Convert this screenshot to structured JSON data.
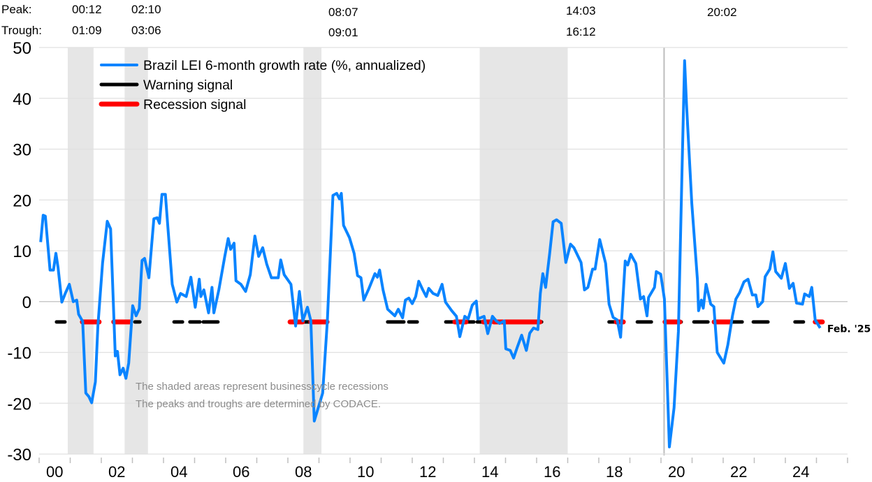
{
  "chart_data": {
    "type": "line",
    "title": "",
    "xlabel": "",
    "ylabel": "",
    "ylim": [
      -30,
      50
    ],
    "xlim": [
      2000,
      2026
    ],
    "grid": true,
    "y_ticks": [
      50,
      40,
      30,
      20,
      10,
      0,
      -10,
      -20,
      -30
    ],
    "x_tick_labels": [
      {
        "year": 2000,
        "label": "00"
      },
      {
        "year": 2002,
        "label": "02"
      },
      {
        "year": 2004,
        "label": "04"
      },
      {
        "year": 2006,
        "label": "06"
      },
      {
        "year": 2008,
        "label": "08"
      },
      {
        "year": 2010,
        "label": "10"
      },
      {
        "year": 2012,
        "label": "12"
      },
      {
        "year": 2014,
        "label": "14"
      },
      {
        "year": 2016,
        "label": "16"
      },
      {
        "year": 2018,
        "label": "18"
      },
      {
        "year": 2020,
        "label": "20"
      },
      {
        "year": 2022,
        "label": "22"
      },
      {
        "year": 2024,
        "label": "24"
      }
    ],
    "legend": {
      "placement": "top-left",
      "entries": [
        {
          "label": "Brazil LEI 6-month growth rate (%, annualized)",
          "color": "#0a84ff"
        },
        {
          "label": "Warning signal",
          "color": "#000000"
        },
        {
          "label": "Recession signal",
          "color": "#ff0000"
        }
      ]
    },
    "series": [
      {
        "name": "Brazil LEI 6-month growth rate (%, annualized)",
        "color": "#0a84ff",
        "points": [
          [
            2000.05,
            11.7
          ],
          [
            2000.13,
            17
          ],
          [
            2000.2,
            16.8
          ],
          [
            2000.35,
            6.2
          ],
          [
            2000.46,
            6.2
          ],
          [
            2000.54,
            9.5
          ],
          [
            2000.61,
            6.7
          ],
          [
            2000.73,
            -0.1
          ],
          [
            2000.84,
            1.6
          ],
          [
            2000.97,
            3.4
          ],
          [
            2001.1,
            0
          ],
          [
            2001.21,
            0.3
          ],
          [
            2001.27,
            -2.5
          ],
          [
            2001.4,
            -3.9
          ],
          [
            2001.5,
            -18
          ],
          [
            2001.6,
            -18.7
          ],
          [
            2001.69,
            -19.9
          ],
          [
            2001.81,
            -15.8
          ],
          [
            2001.89,
            -4.8
          ],
          [
            2002.04,
            7.6
          ],
          [
            2002.19,
            15.8
          ],
          [
            2002.3,
            14.3
          ],
          [
            2002.45,
            -10.7
          ],
          [
            2002.52,
            -9.8
          ],
          [
            2002.6,
            -14.4
          ],
          [
            2002.7,
            -13.1
          ],
          [
            2002.79,
            -15.1
          ],
          [
            2002.88,
            -12.1
          ],
          [
            2003.01,
            -0.8
          ],
          [
            2003.12,
            -2.8
          ],
          [
            2003.22,
            -1.4
          ],
          [
            2003.31,
            8.1
          ],
          [
            2003.39,
            8.5
          ],
          [
            2003.53,
            4.7
          ],
          [
            2003.69,
            16.3
          ],
          [
            2003.8,
            16.5
          ],
          [
            2003.87,
            15.4
          ],
          [
            2003.95,
            21.1
          ],
          [
            2004.06,
            21.1
          ],
          [
            2004.28,
            3.4
          ],
          [
            2004.43,
            -0.1
          ],
          [
            2004.55,
            1.6
          ],
          [
            2004.73,
            1
          ],
          [
            2004.88,
            4.8
          ],
          [
            2005.02,
            -1.1
          ],
          [
            2005.15,
            4.4
          ],
          [
            2005.2,
            1
          ],
          [
            2005.3,
            2.3
          ],
          [
            2005.45,
            -2.2
          ],
          [
            2005.56,
            2.8
          ],
          [
            2005.62,
            -2.2
          ],
          [
            2005.78,
            2.3
          ],
          [
            2005.97,
            8.9
          ],
          [
            2006.08,
            12.4
          ],
          [
            2006.16,
            10.3
          ],
          [
            2006.27,
            11.5
          ],
          [
            2006.33,
            4.1
          ],
          [
            2006.49,
            3.4
          ],
          [
            2006.64,
            2
          ],
          [
            2006.79,
            5.3
          ],
          [
            2006.94,
            12.9
          ],
          [
            2007.06,
            8.9
          ],
          [
            2007.19,
            10.6
          ],
          [
            2007.32,
            7.4
          ],
          [
            2007.47,
            4.7
          ],
          [
            2007.69,
            4.7
          ],
          [
            2007.77,
            8.2
          ],
          [
            2007.88,
            5.3
          ],
          [
            2008.1,
            3.4
          ],
          [
            2008.25,
            -4.8
          ],
          [
            2008.37,
            2
          ],
          [
            2008.48,
            -3.8
          ],
          [
            2008.63,
            -1.1
          ],
          [
            2008.74,
            -3.8
          ],
          [
            2008.85,
            -23.5
          ],
          [
            2009.12,
            -18
          ],
          [
            2009.27,
            -3.8
          ],
          [
            2009.45,
            20.9
          ],
          [
            2009.57,
            21.3
          ],
          [
            2009.66,
            20.2
          ],
          [
            2009.72,
            21.3
          ],
          [
            2009.79,
            15
          ],
          [
            2009.98,
            12.6
          ],
          [
            2010.13,
            9.5
          ],
          [
            2010.24,
            5.1
          ],
          [
            2010.35,
            4.7
          ],
          [
            2010.44,
            0.3
          ],
          [
            2010.61,
            2.6
          ],
          [
            2010.8,
            5.5
          ],
          [
            2010.88,
            4.8
          ],
          [
            2010.95,
            6.2
          ],
          [
            2011.06,
            2.3
          ],
          [
            2011.21,
            -1.5
          ],
          [
            2011.44,
            -2.8
          ],
          [
            2011.55,
            -1.5
          ],
          [
            2011.69,
            -3.2
          ],
          [
            2011.78,
            0.3
          ],
          [
            2011.89,
            0.7
          ],
          [
            2012,
            -0.4
          ],
          [
            2012.11,
            1
          ],
          [
            2012.21,
            4
          ],
          [
            2012.34,
            2.3
          ],
          [
            2012.45,
            1
          ],
          [
            2012.53,
            2.6
          ],
          [
            2012.67,
            1.6
          ],
          [
            2012.82,
            1.2
          ],
          [
            2012.96,
            3.4
          ],
          [
            2013.07,
            -0.1
          ],
          [
            2013.27,
            -1.8
          ],
          [
            2013.42,
            -2.9
          ],
          [
            2013.53,
            -6.9
          ],
          [
            2013.69,
            -2.9
          ],
          [
            2013.8,
            -3.4
          ],
          [
            2013.93,
            -0.7
          ],
          [
            2014.06,
            0.1
          ],
          [
            2014.11,
            -3.4
          ],
          [
            2014.31,
            -2.9
          ],
          [
            2014.43,
            -6.3
          ],
          [
            2014.58,
            -2.9
          ],
          [
            2014.7,
            -3.8
          ],
          [
            2014.81,
            -4.3
          ],
          [
            2014.96,
            -3.8
          ],
          [
            2015.01,
            -9.3
          ],
          [
            2015.15,
            -9.6
          ],
          [
            2015.26,
            -11.1
          ],
          [
            2015.37,
            -9.1
          ],
          [
            2015.52,
            -6.6
          ],
          [
            2015.67,
            -9.6
          ],
          [
            2015.78,
            -6.2
          ],
          [
            2015.9,
            -5.2
          ],
          [
            2016.04,
            -5.5
          ],
          [
            2016.12,
            1.6
          ],
          [
            2016.2,
            5.5
          ],
          [
            2016.29,
            2.8
          ],
          [
            2016.42,
            9.5
          ],
          [
            2016.53,
            15.7
          ],
          [
            2016.64,
            16.1
          ],
          [
            2016.79,
            15.4
          ],
          [
            2016.94,
            7.7
          ],
          [
            2017.09,
            11.3
          ],
          [
            2017.2,
            10.6
          ],
          [
            2017.43,
            7.7
          ],
          [
            2017.54,
            2.3
          ],
          [
            2017.65,
            2.8
          ],
          [
            2017.8,
            6.4
          ],
          [
            2017.88,
            6.4
          ],
          [
            2018.03,
            12.2
          ],
          [
            2018.22,
            7.5
          ],
          [
            2018.33,
            -0.5
          ],
          [
            2018.46,
            -3.1
          ],
          [
            2018.59,
            -3.6
          ],
          [
            2018.7,
            -7
          ],
          [
            2018.85,
            8
          ],
          [
            2018.93,
            7.2
          ],
          [
            2019.03,
            9.3
          ],
          [
            2019.19,
            7.5
          ],
          [
            2019.34,
            0.5
          ],
          [
            2019.44,
            1
          ],
          [
            2019.55,
            -2.8
          ],
          [
            2019.6,
            0.8
          ],
          [
            2019.79,
            2.8
          ],
          [
            2019.85,
            5.9
          ],
          [
            2019.99,
            5.4
          ],
          [
            2020.11,
            0.5
          ],
          [
            2020.27,
            -28.6
          ],
          [
            2020.42,
            -20.9
          ],
          [
            2020.56,
            -5.9
          ],
          [
            2020.67,
            24
          ],
          [
            2020.76,
            47.4
          ],
          [
            2020.82,
            38.9
          ],
          [
            2020.99,
            19.3
          ],
          [
            2021.17,
            4.4
          ],
          [
            2021.21,
            -1.8
          ],
          [
            2021.3,
            0.3
          ],
          [
            2021.36,
            -1.3
          ],
          [
            2021.45,
            3.4
          ],
          [
            2021.6,
            -0.5
          ],
          [
            2021.7,
            -1
          ],
          [
            2021.81,
            -10
          ],
          [
            2022.02,
            -12.1
          ],
          [
            2022.15,
            -8.5
          ],
          [
            2022.3,
            -2.8
          ],
          [
            2022.41,
            0.5
          ],
          [
            2022.53,
            1.8
          ],
          [
            2022.67,
            3.9
          ],
          [
            2022.8,
            4.4
          ],
          [
            2022.94,
            1.3
          ],
          [
            2023.05,
            1.3
          ],
          [
            2023.12,
            -1
          ],
          [
            2023.27,
            0
          ],
          [
            2023.35,
            4.9
          ],
          [
            2023.5,
            6.4
          ],
          [
            2023.6,
            9.8
          ],
          [
            2023.69,
            5.9
          ],
          [
            2023.87,
            4.6
          ],
          [
            2024,
            7.5
          ],
          [
            2024.13,
            2.6
          ],
          [
            2024.25,
            3.6
          ],
          [
            2024.36,
            -0.3
          ],
          [
            2024.55,
            -0.5
          ],
          [
            2024.62,
            1.5
          ],
          [
            2024.77,
            1
          ],
          [
            2024.85,
            2.8
          ],
          [
            2024.96,
            -3.6
          ],
          [
            2025.12,
            -5.2
          ]
        ]
      }
    ],
    "signal_level": -4,
    "warning_signal_periods": [
      [
        2000.56,
        2000.83
      ],
      [
        2001.39,
        2001.93
      ],
      [
        2002.4,
        2002.92
      ],
      [
        2003.08,
        2003.24
      ],
      [
        2004.34,
        2004.61
      ],
      [
        2004.85,
        2005.17
      ],
      [
        2005.28,
        2005.75
      ],
      [
        2008.07,
        2009.26
      ],
      [
        2011.21,
        2011.73
      ],
      [
        2011.89,
        2012.16
      ],
      [
        2013.08,
        2013.98
      ],
      [
        2014.09,
        2016.16
      ],
      [
        2018.33,
        2018.79
      ],
      [
        2019.24,
        2019.69
      ],
      [
        2020.13,
        2020.65
      ],
      [
        2021.06,
        2021.51
      ],
      [
        2021.71,
        2022.61
      ],
      [
        2022.97,
        2023.44
      ],
      [
        2024.31,
        2024.58
      ],
      [
        2024.96,
        2025.19
      ]
    ],
    "recession_signal_periods": [
      [
        2001.39,
        2001.93
      ],
      [
        2002.4,
        2002.92
      ],
      [
        2008.07,
        2008.47
      ],
      [
        2008.74,
        2009.26
      ],
      [
        2013.37,
        2013.73
      ],
      [
        2014.29,
        2014.52
      ],
      [
        2014.63,
        2014.92
      ],
      [
        2014.97,
        2016.11
      ],
      [
        2018.56,
        2018.79
      ],
      [
        2020.13,
        2020.61
      ],
      [
        2021.71,
        2022.22
      ],
      [
        2024.96,
        2025.19
      ]
    ],
    "recessions": [
      {
        "peak": "00:12",
        "trough": "01:09",
        "start": 2000.92,
        "end": 2001.75
      },
      {
        "peak": "02:10",
        "trough": "03:06",
        "start": 2002.75,
        "end": 2003.5
      },
      {
        "peak": "08:07",
        "trough": "09:01",
        "start": 2008.5,
        "end": 2009.08
      },
      {
        "peak": "14:03",
        "trough": "16:12",
        "start": 2014.17,
        "end": 2017.0
      },
      {
        "peak": "20:02",
        "trough": "",
        "start": 2020.1,
        "end": 2020.1
      }
    ],
    "peak_label": "Peak:",
    "trough_label": "Trough:",
    "annotations": [
      "The shaded areas represent businesscycle recessions",
      "The peaks and troughs are determined by CODACE."
    ],
    "end_label": "Feb. '25"
  }
}
